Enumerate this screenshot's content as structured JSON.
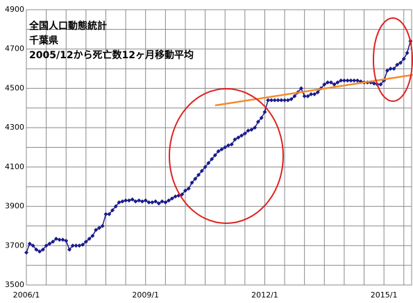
{
  "chart_data": {
    "type": "line",
    "title": [
      "全国人口動態統計",
      "千葉県",
      "2005/12から死亡数12ヶ月移動平均"
    ],
    "x": [
      "2006/1",
      "2006/2",
      "2006/3",
      "2006/4",
      "2006/5",
      "2006/6",
      "2006/7",
      "2006/8",
      "2006/9",
      "2006/10",
      "2006/11",
      "2006/12",
      "2007/1",
      "2007/2",
      "2007/3",
      "2007/4",
      "2007/5",
      "2007/6",
      "2007/7",
      "2007/8",
      "2007/9",
      "2007/10",
      "2007/11",
      "2007/12",
      "2008/1",
      "2008/2",
      "2008/3",
      "2008/4",
      "2008/5",
      "2008/6",
      "2008/7",
      "2008/8",
      "2008/9",
      "2008/10",
      "2008/11",
      "2008/12",
      "2009/1",
      "2009/2",
      "2009/3",
      "2009/4",
      "2009/5",
      "2009/6",
      "2009/7",
      "2009/8",
      "2009/9",
      "2009/10",
      "2009/11",
      "2009/12",
      "2010/1",
      "2010/2",
      "2010/3",
      "2010/4",
      "2010/5",
      "2010/6",
      "2010/7",
      "2010/8",
      "2010/9",
      "2010/10",
      "2010/11",
      "2010/12",
      "2011/1",
      "2011/2",
      "2011/3",
      "2011/4",
      "2011/5",
      "2011/6",
      "2011/7",
      "2011/8",
      "2011/9",
      "2011/10",
      "2011/11",
      "2011/12",
      "2012/1",
      "2012/2",
      "2012/3",
      "2012/4",
      "2012/5",
      "2012/6",
      "2012/7",
      "2012/8",
      "2012/9",
      "2012/10",
      "2012/11",
      "2012/12",
      "2013/1",
      "2013/2",
      "2013/3",
      "2013/4",
      "2013/5",
      "2013/6",
      "2013/7",
      "2013/8",
      "2013/9",
      "2013/10",
      "2013/11",
      "2013/12",
      "2014/1",
      "2014/2",
      "2014/3",
      "2014/4",
      "2014/5",
      "2014/6",
      "2014/7",
      "2014/8",
      "2014/9",
      "2014/10",
      "2014/11",
      "2014/12",
      "2015/1",
      "2015/2",
      "2015/3",
      "2015/4",
      "2015/5",
      "2015/6",
      "2015/7",
      "2015/8",
      "2015/9"
    ],
    "series": [
      {
        "color": "#1a1a8c",
        "values": [
          3665,
          3710,
          3700,
          3680,
          3670,
          3680,
          3700,
          3710,
          3720,
          3735,
          3730,
          3730,
          3725,
          3680,
          3700,
          3700,
          3700,
          3705,
          3720,
          3735,
          3750,
          3780,
          3790,
          3800,
          3860,
          3860,
          3880,
          3900,
          3920,
          3925,
          3930,
          3930,
          3935,
          3925,
          3930,
          3925,
          3930,
          3920,
          3920,
          3925,
          3915,
          3925,
          3920,
          3930,
          3940,
          3950,
          3955,
          3960,
          3980,
          3990,
          4020,
          4040,
          4060,
          4080,
          4100,
          4120,
          4140,
          4160,
          4180,
          4190,
          4200,
          4210,
          4215,
          4240,
          4250,
          4260,
          4270,
          4285,
          4290,
          4300,
          4330,
          4350,
          4380,
          4440,
          4440,
          4440,
          4440,
          4440,
          4440,
          4440,
          4445,
          4460,
          4480,
          4500,
          4460,
          4460,
          4470,
          4470,
          4480,
          4500,
          4520,
          4530,
          4530,
          4520,
          4530,
          4540,
          4540,
          4540,
          4540,
          4540,
          4540,
          4535,
          4530,
          4530,
          4530,
          4525,
          4520,
          4520,
          4540,
          4590,
          4600,
          4600,
          4620,
          4630,
          4650,
          4680,
          4740
        ]
      }
    ],
    "xticks": [
      "2006/1",
      "2009/1",
      "2012/1",
      "2015/1"
    ],
    "ylim": [
      3500,
      4900
    ],
    "yticks": [
      3500,
      3700,
      3900,
      4100,
      4300,
      4500,
      4700,
      4900
    ],
    "grid": true
  }
}
